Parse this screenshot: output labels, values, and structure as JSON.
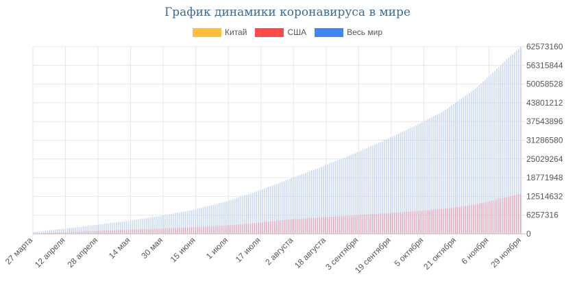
{
  "chart_data": {
    "type": "bar",
    "title": "График динамики коронавируса в мире",
    "legend": [
      "Китай",
      "США",
      "Весь мир"
    ],
    "legend_placement": "top",
    "colors": {
      "china": "#ffbf3a",
      "usa": "#ff4a4a",
      "world": "#4285f4",
      "usa_bar": "#e8a0b4",
      "world_bar": "#c8daf3",
      "grid": "#e6e6e6"
    },
    "x_tick_labels": [
      "27 марта",
      "12 апреля",
      "28 апреля",
      "14 мая",
      "30 мая",
      "15 июня",
      "1 июля",
      "17 июля",
      "2 августа",
      "18 августа",
      "3 сентября",
      "19 сентября",
      "5 октября",
      "21 октября",
      "6 ноября",
      "29 ноября"
    ],
    "y_ticks": [
      0,
      6257316,
      12514632,
      18771948,
      25029264,
      31286580,
      37543896,
      43801212,
      50058528,
      56315844,
      62573160
    ],
    "y_range": [
      0,
      62573160
    ],
    "y_axis_side": "right",
    "grid": true,
    "days": 248,
    "series": [
      {
        "name": "Китай",
        "anchors": [
          [
            0,
            81000
          ],
          [
            247,
            86500
          ]
        ]
      },
      {
        "name": "США",
        "anchors": [
          [
            0,
            86000
          ],
          [
            16,
            550000
          ],
          [
            32,
            1010000
          ],
          [
            48,
            1410000
          ],
          [
            64,
            1780000
          ],
          [
            80,
            2180000
          ],
          [
            96,
            2690000
          ],
          [
            112,
            3600000
          ],
          [
            128,
            4720000
          ],
          [
            144,
            5450000
          ],
          [
            160,
            6120000
          ],
          [
            176,
            6750000
          ],
          [
            192,
            7510000
          ],
          [
            208,
            8400000
          ],
          [
            224,
            9800000
          ],
          [
            247,
            13400000
          ]
        ]
      },
      {
        "name": "Весь мир",
        "anchors": [
          [
            0,
            600000
          ],
          [
            16,
            1780000
          ],
          [
            32,
            3040000
          ],
          [
            48,
            4360000
          ],
          [
            64,
            5960000
          ],
          [
            80,
            7900000
          ],
          [
            96,
            10500000
          ],
          [
            112,
            13900000
          ],
          [
            128,
            17900000
          ],
          [
            144,
            21900000
          ],
          [
            160,
            26100000
          ],
          [
            176,
            30700000
          ],
          [
            192,
            35600000
          ],
          [
            208,
            41000000
          ],
          [
            224,
            48500000
          ],
          [
            247,
            62500000
          ]
        ]
      }
    ]
  }
}
